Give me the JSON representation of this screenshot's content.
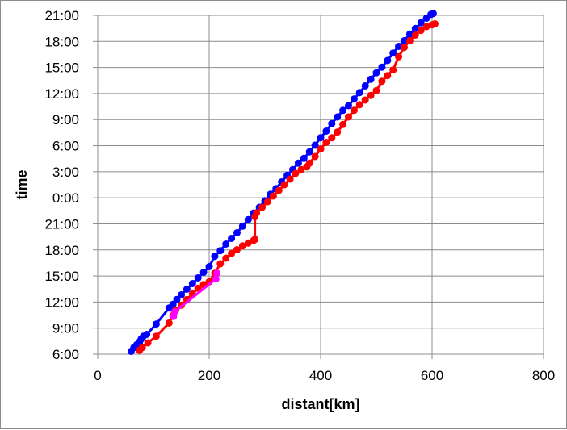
{
  "chart_data": {
    "type": "line",
    "title": "",
    "xlabel": "distant[km]",
    "ylabel": "time",
    "xlim": [
      0,
      800
    ],
    "ylim": [
      6,
      42
    ],
    "x_ticks": [
      "0",
      "200",
      "400",
      "600",
      "800"
    ],
    "y_ticks": [
      "6:00",
      "9:00",
      "12:00",
      "15:00",
      "18:00",
      "21:00",
      "0:00",
      "3:00",
      "6:00",
      "9:00",
      "12:00",
      "15:00",
      "18:00",
      "21:00"
    ],
    "grid": true,
    "legend": "none",
    "series": [
      {
        "color": "#0000ff",
        "points": [
          [
            60,
            6.3
          ],
          [
            65,
            6.7
          ],
          [
            70,
            7.0
          ],
          [
            75,
            7.3
          ],
          [
            78,
            7.6
          ],
          [
            82,
            7.9
          ],
          [
            88,
            8.1
          ],
          [
            105,
            9.2
          ],
          [
            128,
            10.9
          ],
          [
            135,
            11.3
          ],
          [
            142,
            11.8
          ],
          [
            150,
            12.3
          ],
          [
            160,
            12.9
          ],
          [
            170,
            13.5
          ],
          [
            180,
            14.1
          ],
          [
            190,
            14.7
          ],
          [
            200,
            15.3
          ],
          [
            210,
            16.4
          ],
          [
            220,
            17.0
          ],
          [
            230,
            17.7
          ],
          [
            240,
            18.3
          ],
          [
            250,
            18.9
          ],
          [
            260,
            19.6
          ],
          [
            270,
            20.3
          ],
          [
            280,
            21.0
          ],
          [
            290,
            21.6
          ],
          [
            300,
            22.3
          ],
          [
            310,
            23.0
          ],
          [
            320,
            23.6
          ],
          [
            330,
            24.3
          ],
          [
            340,
            25.0
          ],
          [
            350,
            25.6
          ],
          [
            360,
            26.3
          ],
          [
            370,
            26.8
          ],
          [
            380,
            27.5
          ],
          [
            390,
            28.2
          ],
          [
            400,
            29.0
          ],
          [
            410,
            29.7
          ],
          [
            420,
            30.5
          ],
          [
            430,
            31.2
          ],
          [
            440,
            31.9
          ],
          [
            450,
            32.4
          ],
          [
            460,
            33.1
          ],
          [
            470,
            33.8
          ],
          [
            480,
            34.5
          ],
          [
            490,
            35.2
          ],
          [
            500,
            35.9
          ],
          [
            510,
            36.5
          ],
          [
            520,
            37.2
          ],
          [
            530,
            38.0
          ],
          [
            540,
            38.7
          ],
          [
            550,
            39.3
          ],
          [
            560,
            40.0
          ],
          [
            570,
            40.6
          ],
          [
            580,
            41.2
          ],
          [
            590,
            41.7
          ],
          [
            598,
            42.1
          ],
          [
            602,
            42.2
          ]
        ]
      },
      {
        "color": "#ff0000",
        "points": [
          [
            75,
            6.4
          ],
          [
            80,
            6.7
          ],
          [
            90,
            7.2
          ],
          [
            105,
            7.9
          ],
          [
            128,
            9.3
          ],
          [
            135,
            10.1
          ],
          [
            140,
            10.7
          ],
          [
            150,
            11.2
          ],
          [
            160,
            11.8
          ],
          [
            170,
            12.4
          ],
          [
            180,
            13.0
          ],
          [
            190,
            13.4
          ],
          [
            200,
            13.7
          ],
          [
            210,
            14.6
          ],
          [
            220,
            15.6
          ],
          [
            230,
            16.2
          ],
          [
            240,
            16.7
          ],
          [
            250,
            17.1
          ],
          [
            260,
            17.5
          ],
          [
            270,
            17.8
          ],
          [
            280,
            18.1
          ],
          [
            282,
            18.2
          ],
          [
            282,
            20.6
          ],
          [
            285,
            21.0
          ],
          [
            295,
            21.6
          ],
          [
            305,
            22.2
          ],
          [
            315,
            22.8
          ],
          [
            325,
            23.4
          ],
          [
            335,
            24.0
          ],
          [
            345,
            24.6
          ],
          [
            355,
            25.2
          ],
          [
            365,
            25.6
          ],
          [
            375,
            25.9
          ],
          [
            380,
            26.3
          ],
          [
            390,
            27.0
          ],
          [
            400,
            27.8
          ],
          [
            410,
            28.5
          ],
          [
            420,
            29.0
          ],
          [
            430,
            29.6
          ],
          [
            440,
            30.4
          ],
          [
            450,
            31.2
          ],
          [
            460,
            31.9
          ],
          [
            470,
            32.5
          ],
          [
            480,
            33.0
          ],
          [
            490,
            33.5
          ],
          [
            500,
            34.0
          ],
          [
            510,
            35.0
          ],
          [
            520,
            35.6
          ],
          [
            530,
            36.2
          ],
          [
            540,
            37.6
          ],
          [
            550,
            38.6
          ],
          [
            560,
            39.3
          ],
          [
            570,
            39.9
          ],
          [
            580,
            40.4
          ],
          [
            590,
            40.8
          ],
          [
            600,
            41.0
          ],
          [
            605,
            41.1
          ]
        ]
      },
      {
        "color": "#ff00ff",
        "points": [
          [
            136,
            10.0
          ],
          [
            138,
            10.5
          ],
          [
            212,
            14.0
          ],
          [
            214,
            14.6
          ]
        ]
      }
    ]
  }
}
